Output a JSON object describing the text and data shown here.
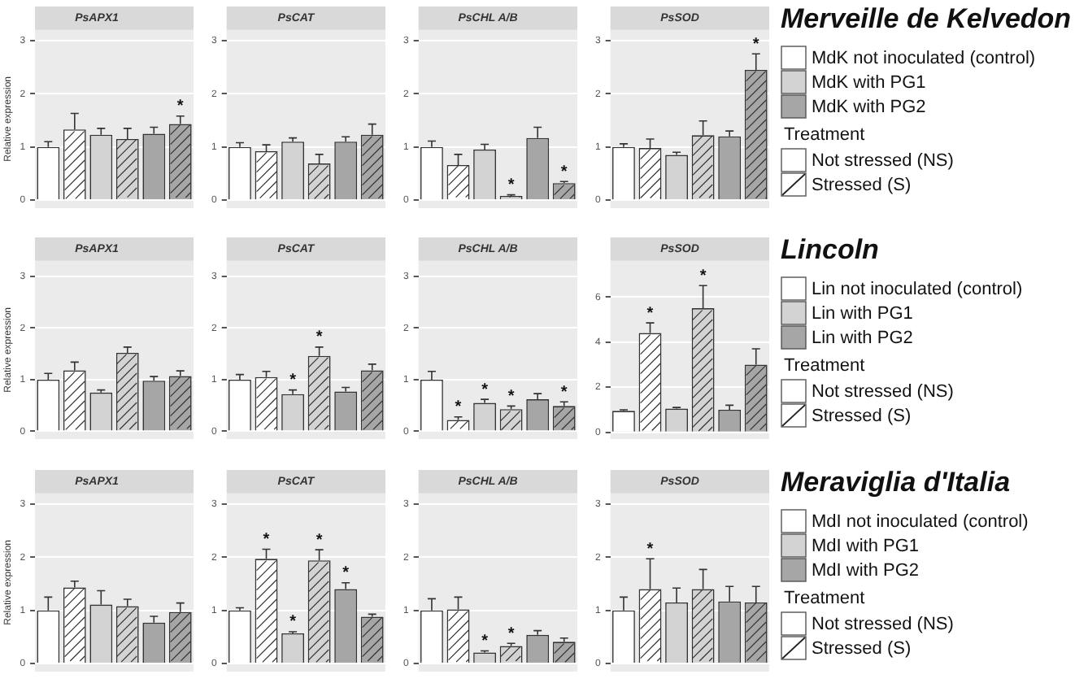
{
  "chart_data": [
    {
      "type": "bar",
      "title": "PsAPX1",
      "ylabel": "Relative expression",
      "categories": [
        null,
        null,
        null,
        null,
        null,
        null
      ],
      "ylim": [
        -0.15,
        3.2
      ],
      "yticks": [
        0,
        1,
        2,
        3
      ],
      "grid": "y",
      "tick_labels": "y",
      "series": [
        {
          "color": "#ffffff",
          "values": [
            1.0,
            1.33,
            null,
            null,
            null,
            null
          ],
          "errors": [
            [
              1.0,
              1.1
            ],
            [
              1.33,
              1.63
            ],
            null,
            null,
            null,
            null
          ]
        },
        {
          "color": "#d3d3d3",
          "values": [
            null,
            null,
            1.23,
            1.15,
            null,
            null
          ],
          "errors": [
            null,
            null,
            [
              1.23,
              1.35
            ],
            [
              1.15,
              1.35
            ],
            null,
            null
          ]
        },
        {
          "color": "#a6a6a6",
          "values": [
            null,
            null,
            null,
            null,
            1.25,
            1.43
          ],
          "errors": [
            null,
            null,
            null,
            null,
            [
              1.25,
              1.37
            ],
            [
              1.43,
              1.58
            ]
          ],
          "value_labels": [
            null,
            null,
            null,
            null,
            null,
            "*"
          ]
        }
      ]
    },
    {
      "type": "bar",
      "title": "PsCAT",
      "categories": [
        null,
        null,
        null,
        null,
        null,
        null
      ],
      "ylim": [
        -0.15,
        3.2
      ],
      "yticks": [
        0,
        1,
        2,
        3
      ],
      "grid": "y",
      "tick_labels": "y",
      "series": [
        {
          "color": "#ffffff",
          "values": [
            1.0,
            0.92,
            null,
            null,
            null,
            null
          ],
          "errors": [
            [
              1.0,
              1.08
            ],
            [
              0.92,
              1.04
            ],
            null,
            null,
            null,
            null
          ]
        },
        {
          "color": "#d3d3d3",
          "values": [
            null,
            null,
            1.1,
            0.69,
            null,
            null
          ],
          "errors": [
            null,
            null,
            [
              1.1,
              1.17
            ],
            [
              0.69,
              0.86
            ],
            null,
            null
          ]
        },
        {
          "color": "#a6a6a6",
          "values": [
            null,
            null,
            null,
            null,
            1.1,
            1.23
          ],
          "errors": [
            null,
            null,
            null,
            null,
            [
              1.1,
              1.19
            ],
            [
              1.23,
              1.43
            ]
          ]
        }
      ]
    },
    {
      "type": "bar",
      "title": "PsCHL A/B",
      "categories": [
        null,
        null,
        null,
        null,
        null,
        null
      ],
      "ylim": [
        -0.15,
        3.2
      ],
      "yticks": [
        0,
        1,
        2,
        3
      ],
      "grid": "y",
      "tick_labels": "y",
      "series": [
        {
          "color": "#ffffff",
          "values": [
            1.0,
            0.66,
            null,
            null,
            null,
            null
          ],
          "errors": [
            [
              1.0,
              1.11
            ],
            [
              0.66,
              0.86
            ],
            null,
            null,
            null,
            null
          ]
        },
        {
          "color": "#d3d3d3",
          "values": [
            null,
            null,
            0.95,
            0.08,
            null,
            null
          ],
          "errors": [
            null,
            null,
            [
              0.95,
              1.05
            ],
            [
              0.08,
              0.1
            ],
            null,
            null
          ],
          "value_labels": [
            null,
            null,
            null,
            "*",
            null,
            null
          ]
        },
        {
          "color": "#a6a6a6",
          "values": [
            null,
            null,
            null,
            null,
            1.17,
            0.32
          ],
          "errors": [
            null,
            null,
            null,
            null,
            [
              1.17,
              1.37
            ],
            [
              0.32,
              0.35
            ]
          ],
          "value_labels": [
            null,
            null,
            null,
            null,
            null,
            "*"
          ]
        }
      ]
    },
    {
      "type": "bar",
      "title": "PsSOD",
      "legend": "right",
      "categories": [
        null,
        null,
        null,
        null,
        null,
        null
      ],
      "ylim": [
        -0.15,
        3.2
      ],
      "yticks": [
        0,
        1,
        2,
        3
      ],
      "grid": "y",
      "tick_labels": "y",
      "series": [
        {
          "name": "MdK not inoculated (control)",
          "color": "#ffffff",
          "values": [
            1.0,
            0.98,
            null,
            null,
            null,
            null
          ],
          "errors": [
            [
              1.0,
              1.06
            ],
            [
              0.98,
              1.15
            ],
            null,
            null,
            null,
            null
          ]
        },
        {
          "name": "MdK with PG1",
          "color": "#d3d3d3",
          "values": [
            null,
            null,
            0.85,
            1.22,
            null,
            null
          ],
          "errors": [
            null,
            null,
            [
              0.85,
              0.9
            ],
            [
              1.22,
              1.49
            ],
            null,
            null
          ]
        },
        {
          "name": "MdK with PG2",
          "color": "#a6a6a6",
          "values": [
            null,
            null,
            null,
            null,
            1.2,
            2.45
          ],
          "errors": [
            null,
            null,
            null,
            null,
            [
              1.2,
              1.3
            ],
            [
              2.45,
              2.75
            ]
          ],
          "value_labels": [
            null,
            null,
            null,
            null,
            null,
            "*"
          ]
        }
      ]
    },
    {
      "type": "other",
      "title": "Merveille de Kelvedon",
      "legend_title": "Treatment",
      "annotations": [
        "Not stressed (NS)",
        "Stressed (S)"
      ]
    },
    {
      "type": "bar",
      "title": "PsAPX1",
      "ylabel": "Relative expression",
      "categories": [
        null,
        null,
        null,
        null,
        null,
        null
      ],
      "ylim": [
        -0.15,
        3.3
      ],
      "yticks": [
        0,
        1,
        2,
        3
      ],
      "grid": "y",
      "tick_labels": "y",
      "series": [
        {
          "color": "#ffffff",
          "values": [
            1.0,
            1.18,
            null,
            null,
            null,
            null
          ],
          "errors": [
            [
              1.0,
              1.12
            ],
            [
              1.18,
              1.34
            ],
            null,
            null,
            null,
            null
          ]
        },
        {
          "color": "#d3d3d3",
          "values": [
            null,
            null,
            0.75,
            1.52,
            null,
            null
          ],
          "errors": [
            null,
            null,
            [
              0.75,
              0.8
            ],
            [
              1.52,
              1.63
            ],
            null,
            null
          ]
        },
        {
          "color": "#a6a6a6",
          "values": [
            null,
            null,
            null,
            null,
            0.98,
            1.07
          ],
          "errors": [
            null,
            null,
            null,
            null,
            [
              0.98,
              1.06
            ],
            [
              1.07,
              1.17
            ]
          ]
        }
      ]
    },
    {
      "type": "bar",
      "title": "PsCAT",
      "categories": [
        null,
        null,
        null,
        null,
        null,
        null
      ],
      "ylim": [
        -0.15,
        3.3
      ],
      "yticks": [
        0,
        1,
        2,
        3
      ],
      "grid": "y",
      "tick_labels": "y",
      "series": [
        {
          "color": "#ffffff",
          "values": [
            1.0,
            1.05,
            null,
            null,
            null,
            null
          ],
          "errors": [
            [
              1.0,
              1.1
            ],
            [
              1.05,
              1.16
            ],
            null,
            null,
            null,
            null
          ]
        },
        {
          "color": "#d3d3d3",
          "values": [
            null,
            null,
            0.72,
            1.46,
            null,
            null
          ],
          "errors": [
            null,
            null,
            [
              0.72,
              0.8
            ],
            [
              1.46,
              1.63
            ],
            null,
            null
          ],
          "value_labels": [
            null,
            null,
            "*",
            "*",
            null,
            null
          ]
        },
        {
          "color": "#a6a6a6",
          "values": [
            null,
            null,
            null,
            null,
            0.77,
            1.18
          ],
          "errors": [
            null,
            null,
            null,
            null,
            [
              0.77,
              0.85
            ],
            [
              1.18,
              1.3
            ]
          ]
        }
      ]
    },
    {
      "type": "bar",
      "title": "PsCHL A/B",
      "categories": [
        null,
        null,
        null,
        null,
        null,
        null
      ],
      "ylim": [
        -0.15,
        3.3
      ],
      "yticks": [
        0,
        1,
        2,
        3
      ],
      "grid": "y",
      "tick_labels": "y",
      "series": [
        {
          "color": "#ffffff",
          "values": [
            1.0,
            0.22,
            null,
            null,
            null,
            null
          ],
          "errors": [
            [
              1.0,
              1.16
            ],
            [
              0.22,
              0.28
            ],
            null,
            null,
            null,
            null
          ],
          "value_labels": [
            null,
            "*",
            null,
            null,
            null,
            null
          ]
        },
        {
          "color": "#d3d3d3",
          "values": [
            null,
            null,
            0.55,
            0.43,
            null,
            null
          ],
          "errors": [
            null,
            null,
            [
              0.55,
              0.62
            ],
            [
              0.43,
              0.49
            ],
            null,
            null
          ],
          "value_labels": [
            null,
            null,
            "*",
            "*",
            null,
            null
          ]
        },
        {
          "color": "#a6a6a6",
          "values": [
            null,
            null,
            null,
            null,
            0.62,
            0.49
          ],
          "errors": [
            null,
            null,
            null,
            null,
            [
              0.62,
              0.73
            ],
            [
              0.49,
              0.57
            ]
          ],
          "value_labels": [
            null,
            null,
            null,
            null,
            null,
            "*"
          ]
        }
      ]
    },
    {
      "type": "bar",
      "title": "PsSOD",
      "legend": "right",
      "categories": [
        null,
        null,
        null,
        null,
        null,
        null
      ],
      "ylim": [
        -0.3,
        7.6
      ],
      "yticks": [
        0,
        2,
        4,
        6
      ],
      "grid": "y",
      "tick_labels": "y",
      "series": [
        {
          "name": "Lin not inoculated (control)",
          "color": "#ffffff",
          "values": [
            0.95,
            4.4,
            null,
            null,
            null,
            null
          ],
          "errors": [
            [
              0.95,
              1.0
            ],
            [
              4.4,
              4.85
            ],
            null,
            null,
            null,
            null
          ],
          "value_labels": [
            null,
            "*",
            null,
            null,
            null,
            null
          ]
        },
        {
          "name": "Lin with PG1",
          "color": "#d3d3d3",
          "values": [
            null,
            null,
            1.05,
            5.5,
            null,
            null
          ],
          "errors": [
            null,
            null,
            [
              1.05,
              1.1
            ],
            [
              5.5,
              6.5
            ],
            null,
            null
          ],
          "value_labels": [
            null,
            null,
            null,
            "*",
            null,
            null
          ]
        },
        {
          "name": "Lin with PG2",
          "color": "#a6a6a6",
          "values": [
            null,
            null,
            null,
            null,
            1.0,
            3.0
          ],
          "errors": [
            null,
            null,
            null,
            null,
            [
              1.0,
              1.2
            ],
            [
              3.0,
              3.7
            ]
          ]
        }
      ]
    },
    {
      "type": "other",
      "title": "Lincoln",
      "legend_title": "Treatment",
      "annotations": [
        "Not stressed (NS)",
        "Stressed (S)"
      ]
    },
    {
      "type": "bar",
      "title": "PsAPX1",
      "ylabel": "Relative expression",
      "categories": [
        null,
        null,
        null,
        null,
        null,
        null
      ],
      "ylim": [
        -0.15,
        3.2
      ],
      "yticks": [
        0,
        1,
        2,
        3
      ],
      "grid": "y",
      "tick_labels": "y",
      "series": [
        {
          "color": "#ffffff",
          "values": [
            1.0,
            1.43,
            null,
            null,
            null,
            null
          ],
          "errors": [
            [
              1.0,
              1.25
            ],
            [
              1.43,
              1.55
            ],
            null,
            null,
            null,
            null
          ]
        },
        {
          "color": "#d3d3d3",
          "values": [
            null,
            null,
            1.11,
            1.08,
            null,
            null
          ],
          "errors": [
            null,
            null,
            [
              1.11,
              1.37
            ],
            [
              1.08,
              1.21
            ],
            null,
            null
          ]
        },
        {
          "color": "#a6a6a6",
          "values": [
            null,
            null,
            null,
            null,
            0.77,
            0.97
          ],
          "errors": [
            null,
            null,
            null,
            null,
            [
              0.77,
              0.89
            ],
            [
              0.97,
              1.14
            ]
          ]
        }
      ]
    },
    {
      "type": "bar",
      "title": "PsCAT",
      "categories": [
        null,
        null,
        null,
        null,
        null,
        null
      ],
      "ylim": [
        -0.15,
        3.2
      ],
      "yticks": [
        0,
        1,
        2,
        3
      ],
      "grid": "y",
      "tick_labels": "y",
      "series": [
        {
          "color": "#ffffff",
          "values": [
            1.0,
            1.97,
            null,
            null,
            null,
            null
          ],
          "errors": [
            [
              1.0,
              1.05
            ],
            [
              1.97,
              2.15
            ],
            null,
            null,
            null,
            null
          ],
          "value_labels": [
            null,
            "*",
            null,
            null,
            null,
            null
          ]
        },
        {
          "color": "#d3d3d3",
          "values": [
            null,
            null,
            0.57,
            1.94,
            null,
            null
          ],
          "errors": [
            null,
            null,
            [
              0.57,
              0.6
            ],
            [
              1.94,
              2.14
            ],
            null,
            null
          ],
          "value_labels": [
            null,
            null,
            "*",
            "*",
            null,
            null
          ]
        },
        {
          "color": "#a6a6a6",
          "values": [
            null,
            null,
            null,
            null,
            1.4,
            0.88
          ],
          "errors": [
            null,
            null,
            null,
            null,
            [
              1.4,
              1.52
            ],
            [
              0.88,
              0.93
            ]
          ],
          "value_labels": [
            null,
            null,
            null,
            null,
            "*",
            null
          ]
        }
      ]
    },
    {
      "type": "bar",
      "title": "PsCHL A/B",
      "categories": [
        null,
        null,
        null,
        null,
        null,
        null
      ],
      "ylim": [
        -0.15,
        3.2
      ],
      "yticks": [
        0,
        1,
        2,
        3
      ],
      "grid": "y",
      "tick_labels": "y",
      "series": [
        {
          "color": "#ffffff",
          "values": [
            1.0,
            1.02,
            null,
            null,
            null,
            null
          ],
          "errors": [
            [
              1.0,
              1.22
            ],
            [
              1.02,
              1.25
            ],
            null,
            null,
            null,
            null
          ]
        },
        {
          "color": "#d3d3d3",
          "values": [
            null,
            null,
            0.21,
            0.33,
            null,
            null
          ],
          "errors": [
            null,
            null,
            [
              0.21,
              0.24
            ],
            [
              0.33,
              0.38
            ],
            null,
            null
          ],
          "value_labels": [
            null,
            null,
            "*",
            "*",
            null,
            null
          ]
        },
        {
          "color": "#a6a6a6",
          "values": [
            null,
            null,
            null,
            null,
            0.54,
            0.41
          ],
          "errors": [
            null,
            null,
            null,
            null,
            [
              0.54,
              0.62
            ],
            [
              0.41,
              0.48
            ]
          ]
        }
      ]
    },
    {
      "type": "bar",
      "title": "PsSOD",
      "legend": "right",
      "categories": [
        null,
        null,
        null,
        null,
        null,
        null
      ],
      "ylim": [
        -0.15,
        3.2
      ],
      "yticks": [
        0,
        1,
        2,
        3
      ],
      "grid": "y",
      "tick_labels": "y",
      "series": [
        {
          "name": "MdI not inoculated (control)",
          "color": "#ffffff",
          "values": [
            1.0,
            1.4,
            null,
            null,
            null,
            null
          ],
          "errors": [
            [
              1.0,
              1.25
            ],
            [
              1.4,
              1.97
            ],
            null,
            null,
            null,
            null
          ],
          "value_labels": [
            null,
            "*",
            null,
            null,
            null,
            null
          ]
        },
        {
          "name": "MdI with PG1",
          "color": "#d3d3d3",
          "values": [
            null,
            null,
            1.15,
            1.4,
            null,
            null
          ],
          "errors": [
            null,
            null,
            [
              1.15,
              1.42
            ],
            [
              1.4,
              1.77
            ],
            null,
            null
          ]
        },
        {
          "name": "MdI with PG2",
          "color": "#a6a6a6",
          "values": [
            null,
            null,
            null,
            null,
            1.17,
            1.15
          ],
          "errors": [
            null,
            null,
            null,
            null,
            [
              1.17,
              1.45
            ],
            [
              1.15,
              1.45
            ]
          ]
        }
      ]
    },
    {
      "type": "other",
      "title": "Meraviglia d'Italia",
      "legend_title": "Treatment",
      "annotations": [
        "Not stressed (NS)",
        "Stressed (S)"
      ]
    }
  ]
}
